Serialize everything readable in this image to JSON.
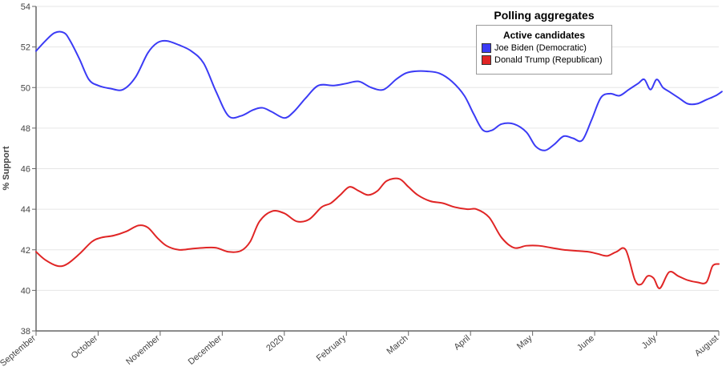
{
  "chart_data": {
    "type": "line",
    "title": "Polling aggregates",
    "ylabel": "% Support",
    "xlabel": "",
    "ylim": [
      38,
      54
    ],
    "yticks": [
      38,
      40,
      42,
      44,
      46,
      48,
      50,
      52,
      54
    ],
    "xlim": [
      0,
      11
    ],
    "xticks": [
      {
        "label": "September",
        "x": 0
      },
      {
        "label": "October",
        "x": 1
      },
      {
        "label": "November",
        "x": 2
      },
      {
        "label": "December",
        "x": 3
      },
      {
        "label": "2020",
        "x": 4
      },
      {
        "label": "February",
        "x": 5
      },
      {
        "label": "March",
        "x": 6
      },
      {
        "label": "April",
        "x": 7
      },
      {
        "label": "May",
        "x": 8
      },
      {
        "label": "June",
        "x": 9
      },
      {
        "label": "July",
        "x": 10
      },
      {
        "label": "August",
        "x": 11
      }
    ],
    "grid": true,
    "legend": {
      "title": "Active candidates",
      "placement": "top-right"
    },
    "series": [
      {
        "name": "Joe Biden (Democratic)",
        "color": "#3b3bf5",
        "x": [
          0,
          0.15,
          0.3,
          0.45,
          0.55,
          0.7,
          0.85,
          1.0,
          1.2,
          1.4,
          1.6,
          1.8,
          1.95,
          2.1,
          2.3,
          2.5,
          2.7,
          2.9,
          3.1,
          3.3,
          3.5,
          3.65,
          3.8,
          4.0,
          4.15,
          4.35,
          4.55,
          4.8,
          5.0,
          5.2,
          5.4,
          5.6,
          5.8,
          5.95,
          6.1,
          6.3,
          6.5,
          6.7,
          6.9,
          7.05,
          7.2,
          7.35,
          7.5,
          7.7,
          7.9,
          8.05,
          8.2,
          8.35,
          8.5,
          8.65,
          8.8,
          8.95,
          9.1,
          9.25,
          9.4,
          9.55,
          9.7,
          9.8,
          9.9,
          10.0,
          10.1,
          10.2,
          10.35,
          10.5,
          10.65,
          10.8,
          10.95,
          11.05
        ],
        "values": [
          51.8,
          52.3,
          52.7,
          52.7,
          52.3,
          51.4,
          50.4,
          50.1,
          49.95,
          49.9,
          50.5,
          51.7,
          52.2,
          52.3,
          52.1,
          51.8,
          51.2,
          49.8,
          48.6,
          48.6,
          48.9,
          49.0,
          48.8,
          48.5,
          48.8,
          49.5,
          50.1,
          50.1,
          50.2,
          50.3,
          50.0,
          49.9,
          50.4,
          50.7,
          50.8,
          50.8,
          50.7,
          50.3,
          49.6,
          48.7,
          47.9,
          47.9,
          48.2,
          48.2,
          47.8,
          47.1,
          46.9,
          47.2,
          47.6,
          47.5,
          47.4,
          48.4,
          49.5,
          49.7,
          49.6,
          49.9,
          50.2,
          50.4,
          49.9,
          50.4,
          50.0,
          49.8,
          49.5,
          49.2,
          49.2,
          49.4,
          49.6,
          49.8
        ]
      },
      {
        "name": "Donald Trump (Republican)",
        "color": "#e02525",
        "x": [
          0,
          0.15,
          0.35,
          0.5,
          0.7,
          0.9,
          1.05,
          1.25,
          1.45,
          1.65,
          1.8,
          1.95,
          2.1,
          2.3,
          2.5,
          2.7,
          2.9,
          3.1,
          3.3,
          3.45,
          3.6,
          3.8,
          4.0,
          4.2,
          4.4,
          4.6,
          4.75,
          4.9,
          5.05,
          5.2,
          5.35,
          5.5,
          5.65,
          5.85,
          6.0,
          6.15,
          6.35,
          6.55,
          6.75,
          6.95,
          7.1,
          7.3,
          7.5,
          7.7,
          7.9,
          8.1,
          8.3,
          8.5,
          8.7,
          8.9,
          9.05,
          9.2,
          9.35,
          9.5,
          9.65,
          9.75,
          9.85,
          9.95,
          10.05,
          10.2,
          10.35,
          10.5,
          10.65,
          10.8,
          10.9,
          11.0
        ],
        "values": [
          41.9,
          41.5,
          41.2,
          41.3,
          41.8,
          42.4,
          42.6,
          42.7,
          42.9,
          43.2,
          43.1,
          42.6,
          42.2,
          42.0,
          42.05,
          42.1,
          42.1,
          41.9,
          41.95,
          42.4,
          43.4,
          43.9,
          43.8,
          43.4,
          43.5,
          44.1,
          44.3,
          44.7,
          45.1,
          44.9,
          44.7,
          44.9,
          45.4,
          45.5,
          45.1,
          44.7,
          44.4,
          44.3,
          44.1,
          44.0,
          44.0,
          43.6,
          42.6,
          42.1,
          42.2,
          42.2,
          42.1,
          42.0,
          41.95,
          41.9,
          41.8,
          41.7,
          41.9,
          42.0,
          40.5,
          40.3,
          40.7,
          40.6,
          40.1,
          40.9,
          40.7,
          40.5,
          40.4,
          40.4,
          41.2,
          41.3
        ]
      }
    ]
  }
}
